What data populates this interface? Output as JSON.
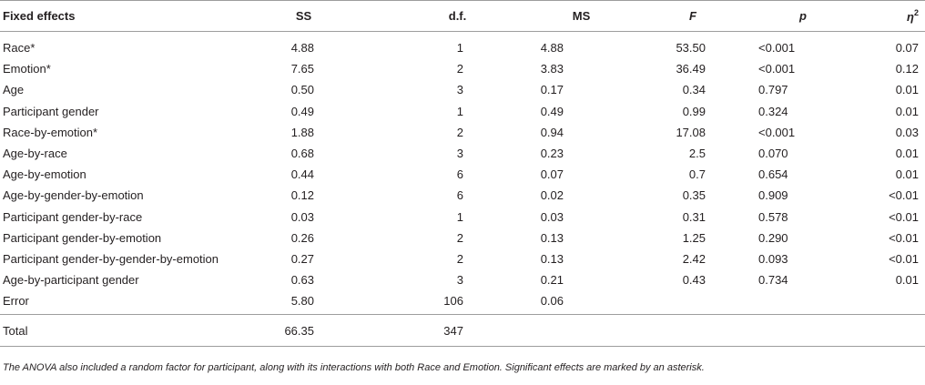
{
  "headers": {
    "effects": "Fixed effects",
    "ss": "SS",
    "df": "d.f.",
    "ms": "MS",
    "f": "F",
    "p": "p",
    "eta_symbol": "η",
    "eta_sup": "2"
  },
  "rows": [
    {
      "effect": "Race*",
      "ss": "4.88",
      "df": "1",
      "ms": "4.88",
      "f": "53.50",
      "p": "<0.001",
      "eta": "0.07"
    },
    {
      "effect": "Emotion*",
      "ss": "7.65",
      "df": "2",
      "ms": "3.83",
      "f": "36.49",
      "p": "<0.001",
      "eta": "0.12"
    },
    {
      "effect": "Age",
      "ss": "0.50",
      "df": "3",
      "ms": "0.17",
      "f": "0.34",
      "p": "0.797",
      "eta": "0.01"
    },
    {
      "effect": "Participant gender",
      "ss": "0.49",
      "df": "1",
      "ms": "0.49",
      "f": "0.99",
      "p": "0.324",
      "eta": "0.01"
    },
    {
      "effect": "Race-by-emotion*",
      "ss": "1.88",
      "df": "2",
      "ms": "0.94",
      "f": "17.08",
      "p": "<0.001",
      "eta": "0.03"
    },
    {
      "effect": "Age-by-race",
      "ss": "0.68",
      "df": "3",
      "ms": "0.23",
      "f": "2.5",
      "p": "0.070",
      "eta": "0.01"
    },
    {
      "effect": "Age-by-emotion",
      "ss": "0.44",
      "df": "6",
      "ms": "0.07",
      "f": "0.7",
      "p": "0.654",
      "eta": "0.01"
    },
    {
      "effect": "Age-by-gender-by-emotion",
      "ss": "0.12",
      "df": "6",
      "ms": "0.02",
      "f": "0.35",
      "p": "0.909",
      "eta": "<0.01"
    },
    {
      "effect": "Participant gender-by-race",
      "ss": "0.03",
      "df": "1",
      "ms": "0.03",
      "f": "0.31",
      "p": "0.578",
      "eta": "<0.01"
    },
    {
      "effect": "Participant gender-by-emotion",
      "ss": "0.26",
      "df": "2",
      "ms": "0.13",
      "f": "1.25",
      "p": "0.290",
      "eta": "<0.01"
    },
    {
      "effect": "Participant gender-by-gender-by-emotion",
      "ss": "0.27",
      "df": "2",
      "ms": "0.13",
      "f": "2.42",
      "p": "0.093",
      "eta": "<0.01"
    },
    {
      "effect": "Age-by-participant gender",
      "ss": "0.63",
      "df": "3",
      "ms": "0.21",
      "f": "0.43",
      "p": "0.734",
      "eta": "0.01"
    },
    {
      "effect": "Error",
      "ss": "5.80",
      "df": "106",
      "ms": "0.06",
      "f": "",
      "p": "",
      "eta": ""
    }
  ],
  "total": {
    "label": "Total",
    "ss": "66.35",
    "df": "347"
  },
  "note": "The ANOVA also included a random factor for participant, along with its interactions with both Race and Emotion. Significant effects are marked by an asterisk."
}
